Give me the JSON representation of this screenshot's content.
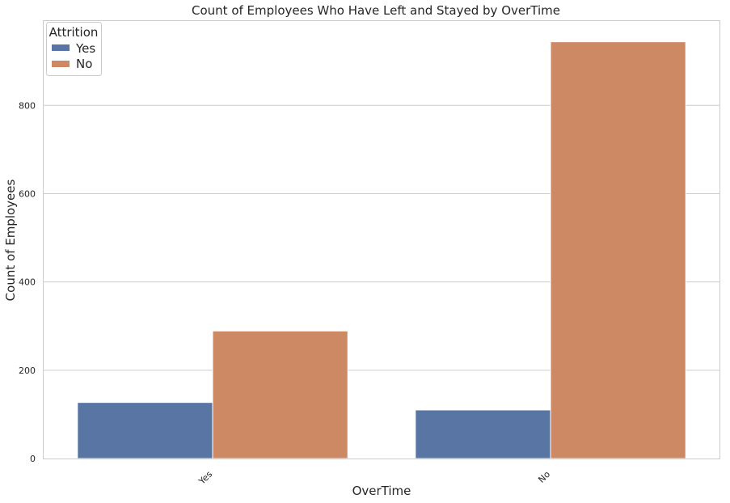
{
  "chart_data": {
    "type": "bar",
    "title": "Count of Employees Who Have Left and Stayed by OverTime",
    "xlabel": "OverTime",
    "ylabel": "Count of Employees",
    "categories": [
      "Yes",
      "No"
    ],
    "series": [
      {
        "name": "Yes",
        "values": [
          127,
          110
        ],
        "color": "#5975a4"
      },
      {
        "name": "No",
        "values": [
          289,
          944
        ],
        "color": "#cc8963"
      }
    ],
    "ylim": [
      0,
      991
    ],
    "yticks": [
      0,
      200,
      400,
      600,
      800
    ],
    "grid": true,
    "legend": {
      "title": "Attrition",
      "placement": "top-left"
    }
  }
}
